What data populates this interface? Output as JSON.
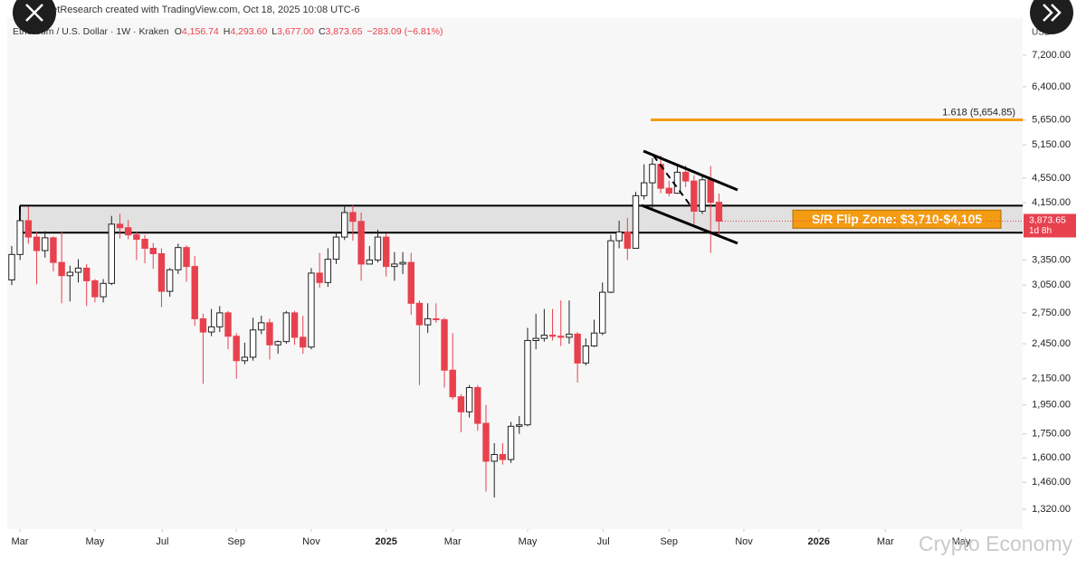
{
  "chart_data": {
    "type": "candlestick",
    "header": "rketResearch created with TradingView.com, Oct 18, 2025 10:08 UTC-6",
    "symbol": "Ethereum / U.S. Dollar · 1W · Kraken",
    "ohlc_legend": [
      {
        "key": "O",
        "text": "4,156.74"
      },
      {
        "key": "H",
        "text": "4,293.60"
      },
      {
        "key": "L",
        "text": "3,677.00"
      },
      {
        "key": "C",
        "text": "3,873.65"
      }
    ],
    "change": "−283.09 (−6.81%)",
    "currency": "USD",
    "log_scale": true,
    "up_color": "#ffffff",
    "down_color": "#e8414e",
    "open": [
      3110,
      3420,
      3880,
      3650,
      3470,
      3640,
      3320,
      3160,
      3200,
      3250,
      3100,
      2920,
      3070,
      3830,
      3780,
      3680,
      3620,
      3500,
      3430,
      2980,
      3230,
      3510,
      3270,
      2690,
      2560,
      2610,
      2750,
      2520,
      2300,
      2330,
      2580,
      2650,
      2440,
      2470,
      2750,
      2510,
      2420,
      3190,
      3080,
      3360,
      3650,
      4000,
      3870,
      3300,
      3350,
      3650,
      3270,
      3300,
      3320,
      2850,
      2630,
      2690,
      2680,
      2220,
      2010,
      1900,
      2080,
      1820,
      1580,
      1620,
      1590,
      1800,
      1810,
      2480,
      2500,
      2530,
      2520,
      2510,
      2540,
      2280,
      2430,
      2550,
      2970,
      3600,
      3720,
      3500,
      4260,
      4470,
      4790,
      4380,
      4300,
      4650,
      4500,
      4020,
      4520,
      4156.74
    ],
    "high": [
      3530,
      4000,
      4090,
      3720,
      3730,
      3660,
      3720,
      3280,
      3360,
      3300,
      3120,
      3120,
      3950,
      3980,
      3890,
      3720,
      3680,
      3570,
      3500,
      3250,
      3560,
      3540,
      3400,
      2740,
      2790,
      2820,
      2770,
      2550,
      2460,
      2700,
      2720,
      2690,
      2480,
      2770,
      2770,
      2720,
      3250,
      3440,
      3500,
      3720,
      4100,
      4110,
      4000,
      3530,
      3750,
      3700,
      3450,
      3450,
      3440,
      2880,
      2850,
      2850,
      2700,
      2550,
      2030,
      2100,
      2100,
      1950,
      1690,
      1690,
      1830,
      1870,
      2600,
      2740,
      2790,
      2790,
      2880,
      2880,
      2560,
      2500,
      2680,
      3080,
      3680,
      3880,
      3920,
      4320,
      4790,
      4900,
      4950,
      4500,
      4760,
      4770,
      4600,
      4590,
      4760,
      4293.6
    ],
    "low": [
      3050,
      3350,
      3560,
      3060,
      3380,
      3210,
      2850,
      2870,
      3080,
      2820,
      2860,
      2860,
      3050,
      3630,
      3620,
      3350,
      3310,
      3240,
      2810,
      2920,
      3180,
      3090,
      2620,
      2110,
      2520,
      2560,
      2400,
      2150,
      2270,
      2300,
      2540,
      2310,
      2360,
      2450,
      2440,
      2360,
      2400,
      3020,
      3030,
      3300,
      3610,
      3600,
      3100,
      3300,
      3320,
      3150,
      3100,
      3180,
      2730,
      2100,
      2550,
      2650,
      2080,
      1990,
      1760,
      1860,
      1770,
      1410,
      1380,
      1560,
      1570,
      1750,
      1800,
      2400,
      2470,
      2480,
      2430,
      2450,
      2120,
      2260,
      2420,
      2530,
      2960,
      3500,
      3350,
      3500,
      4200,
      4070,
      4300,
      4250,
      4290,
      4400,
      3820,
      3980,
      3440,
      3677
    ],
    "close": [
      3420,
      3880,
      3650,
      3470,
      3640,
      3320,
      3160,
      3200,
      3250,
      3100,
      2920,
      3070,
      3830,
      3780,
      3680,
      3620,
      3500,
      3430,
      2980,
      3230,
      3510,
      3270,
      2690,
      2560,
      2610,
      2750,
      2520,
      2300,
      2330,
      2580,
      2650,
      2440,
      2470,
      2750,
      2510,
      2420,
      3190,
      3080,
      3360,
      3650,
      4000,
      3870,
      3300,
      3350,
      3650,
      3270,
      3300,
      3320,
      2850,
      2630,
      2690,
      2680,
      2220,
      2010,
      1900,
      2080,
      1820,
      1580,
      1620,
      1590,
      1800,
      1810,
      2480,
      2500,
      2530,
      2520,
      2510,
      2540,
      2280,
      2430,
      2550,
      2970,
      3600,
      3720,
      3500,
      4260,
      4470,
      4790,
      4380,
      4300,
      4650,
      4500,
      4020,
      4520,
      4156.74,
      3873.65
    ],
    "xlim": [
      -0.54,
      121.5
    ],
    "xticks": [
      {
        "value": 0.98,
        "label": "Mar"
      },
      {
        "value": 10.0,
        "label": "May"
      },
      {
        "value": 18.1,
        "label": "Jul"
      },
      {
        "value": 27.0,
        "label": "Sep"
      },
      {
        "value": 36.0,
        "label": "Nov"
      },
      {
        "value": 45.0,
        "label": "2025"
      },
      {
        "value": 53.0,
        "label": "Mar"
      },
      {
        "value": 62.0,
        "label": "May"
      },
      {
        "value": 71.1,
        "label": "Jul"
      },
      {
        "value": 79.0,
        "label": "Sep"
      },
      {
        "value": 88.0,
        "label": "Nov"
      },
      {
        "value": 97.0,
        "label": "2026"
      },
      {
        "value": 105.0,
        "label": "Mar"
      },
      {
        "value": 114.1,
        "label": "May"
      }
    ],
    "ylim": [
      1226,
      8270
    ],
    "yticks": [
      {
        "value": 7200,
        "label": "7,200.00"
      },
      {
        "value": 6400,
        "label": "6,400.00"
      },
      {
        "value": 5650,
        "label": "5,650.00"
      },
      {
        "value": 5150,
        "label": "5,150.00"
      },
      {
        "value": 4550,
        "label": "4,550.00"
      },
      {
        "value": 4150,
        "label": "4,150.00"
      },
      {
        "value": 3350,
        "label": "3,350.00"
      },
      {
        "value": 3050,
        "label": "3,050.00"
      },
      {
        "value": 2750,
        "label": "2,750.00"
      },
      {
        "value": 2450,
        "label": "2,450.00"
      },
      {
        "value": 2150,
        "label": "2,150.00"
      },
      {
        "value": 1950,
        "label": "1,950.00"
      },
      {
        "value": 1750,
        "label": "1,750.00"
      },
      {
        "value": 1600,
        "label": "1,600.00"
      },
      {
        "value": 1460,
        "label": "1,460.00"
      },
      {
        "value": 1320,
        "label": "1,320.00"
      }
    ],
    "fib_level": {
      "value": 5654.85,
      "label": "1.618 (5,654.85)",
      "color": "#f39c12"
    },
    "zone": {
      "low": 3710,
      "high": 4105,
      "label": "S/R Flip Zone: $3,710-$4,105",
      "color": "#f39c12"
    },
    "last_price": {
      "value": 3873.65,
      "label": "3,873.65",
      "countdown": "1d 8h"
    },
    "watermark": "Crypto Economy"
  }
}
